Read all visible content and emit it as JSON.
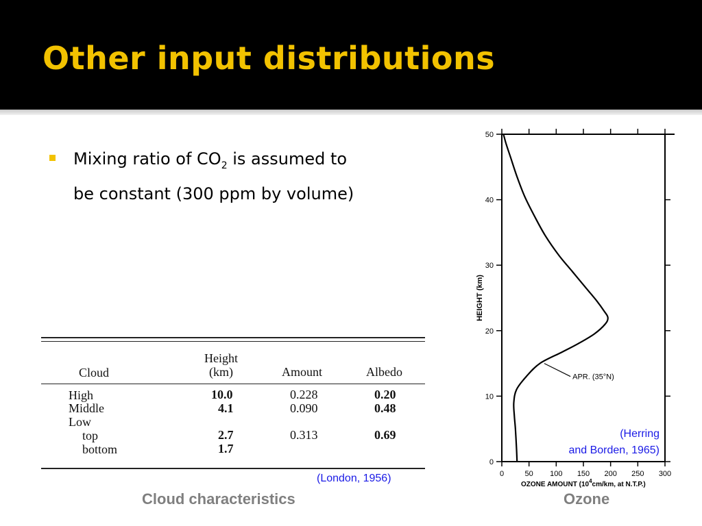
{
  "slide": {
    "title": "Other input distributions",
    "bullet": {
      "pre": "Mixing ratio of CO",
      "sub": "2",
      "post": " is assumed to be constant (300 ppm by volume)"
    },
    "colors": {
      "title": "#f2c200",
      "caption": "#7f7f7f",
      "citation": "#1a1ae6"
    }
  },
  "cloud_table": {
    "headers": {
      "cloud": "Cloud",
      "height_1": "Height",
      "height_2": "(km)",
      "amount": "Amount",
      "albedo": "Albedo"
    },
    "rows": [
      {
        "cloud": "High",
        "height": "10.0",
        "amount": "0.228",
        "albedo": "0.20"
      },
      {
        "cloud": "Middle",
        "height": "4.1",
        "amount": "0.090",
        "albedo": "0.48"
      },
      {
        "cloud": "Low",
        "height": "",
        "amount": "",
        "albedo": ""
      },
      {
        "cloud": "top",
        "height": "2.7",
        "amount": "0.313",
        "albedo": "0.69"
      },
      {
        "cloud": "bottom",
        "height": "1.7",
        "amount": "",
        "albedo": ""
      }
    ],
    "citation": "(London, 1956)",
    "caption": "Cloud characteristics"
  },
  "chart_data": {
    "type": "line",
    "xlabel_pre": "OZONE  AMOUNT (10",
    "xlabel_sup": "4",
    "xlabel_post": "cm/km, at N.T.P.)",
    "ylabel": "HEIGHT (km)",
    "xlim": [
      0,
      300
    ],
    "ylim": [
      0,
      50
    ],
    "x_ticks": [
      0,
      50,
      100,
      150,
      200,
      250,
      300
    ],
    "y_ticks": [
      0,
      10,
      20,
      30,
      40,
      50
    ],
    "grid": false,
    "series": [
      {
        "name": "APR. (35°N)",
        "points": [
          [
            28,
            0
          ],
          [
            27,
            2
          ],
          [
            25,
            5
          ],
          [
            23,
            7
          ],
          [
            22,
            9
          ],
          [
            27,
            11
          ],
          [
            45,
            13
          ],
          [
            70,
            15
          ],
          [
            110,
            16.7
          ],
          [
            140,
            18
          ],
          [
            170,
            19.5
          ],
          [
            190,
            21
          ],
          [
            195,
            22
          ],
          [
            188,
            23
          ],
          [
            175,
            24.5
          ],
          [
            155,
            26.5
          ],
          [
            130,
            29
          ],
          [
            105,
            31.5
          ],
          [
            80,
            34.5
          ],
          [
            60,
            37.5
          ],
          [
            42,
            40.5
          ],
          [
            28,
            43.5
          ],
          [
            16,
            46.5
          ],
          [
            8,
            48.5
          ],
          [
            3,
            50
          ]
        ]
      }
    ],
    "annotation": {
      "text": "APR. (35°N)",
      "x": 130,
      "y": 13,
      "arrow_to": [
        78,
        15
      ]
    },
    "citation_line1": "(Herring",
    "citation_line2": "and Borden, 1965)",
    "caption": "Ozone"
  }
}
